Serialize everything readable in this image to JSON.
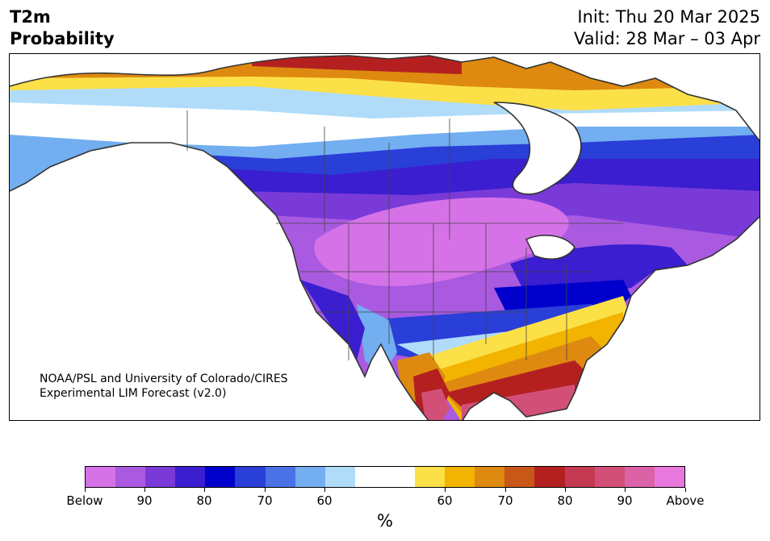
{
  "header": {
    "title_line1": "T2m",
    "title_line2": "Probability",
    "init": "Init: Thu 20 Mar 2025",
    "valid": "Valid: 28 Mar – 03 Apr"
  },
  "credit": {
    "line1": "NOAA/PSL and University of Colorado/CIRES",
    "line2": "Experimental LIM Forecast (v2.0)"
  },
  "colorbar": {
    "unit_label": "%",
    "colors": [
      "#d672e8",
      "#a95ae0",
      "#7a3ad8",
      "#3a1ed0",
      "#0000cc",
      "#2a3ed8",
      "#4a72e6",
      "#72aef0",
      "#b0dcfa",
      "#ffffff",
      "#ffffff",
      "#fce048",
      "#f2b400",
      "#de8a10",
      "#c85818",
      "#b42020",
      "#c43a50",
      "#d25078",
      "#dc62a8",
      "#e878dc"
    ],
    "ticks": [
      {
        "label": "Below"
      },
      {
        "label": "90"
      },
      {
        "label": "80"
      },
      {
        "label": "70"
      },
      {
        "label": "60"
      },
      {
        "label": "60"
      },
      {
        "label": "70"
      },
      {
        "label": "80"
      },
      {
        "label": "90"
      },
      {
        "label": "Above"
      }
    ]
  },
  "map": {
    "colors": {
      "ocean": "#ffffff",
      "coast": "#333333",
      "border": "#444444"
    }
  }
}
